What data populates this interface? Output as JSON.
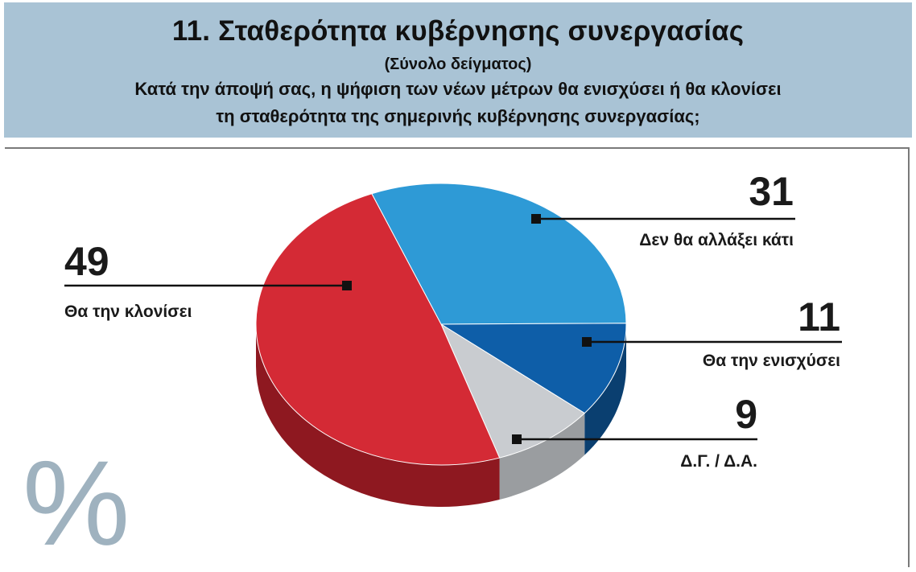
{
  "header": {
    "title": "11. Σταθερότητα κυβέρνησης συνεργασίας",
    "subtitle": "(Σύνολο δείγματος)",
    "question_line1": "Κατά την άποψή σας, η ψήφιση των νέων μέτρων θα ενισχύσει ή θα κλονίσει",
    "question_line2": "τη σταθερότητα της σημερινής κυβέρνησης συνεργασίας;"
  },
  "percent_symbol": "%",
  "colors": {
    "header_bg": "#a9c3d5",
    "red": "#d42a35",
    "light_blue": "#2e9ad6",
    "dark_blue": "#0e5ea8",
    "gray": "#c9ccd0"
  },
  "chart_data": {
    "type": "pie",
    "title": "11. Σταθερότητα κυβέρνησης συνεργασίας",
    "slices": [
      {
        "label": "Δεν θα αλλάξει κάτι",
        "value": 31,
        "color": "#2e9ad6",
        "side_color": "#1f6fa0"
      },
      {
        "label": "Θα την ενισχύσει",
        "value": 11,
        "color": "#0e5ea8",
        "side_color": "#0a3f70"
      },
      {
        "label": "Δ.Γ. / Δ.Α.",
        "value": 9,
        "color": "#c9ccd0",
        "side_color": "#9a9da0"
      },
      {
        "label": "Θα την κλονίσει",
        "value": 49,
        "color": "#d42a35",
        "side_color": "#8e1820"
      }
    ]
  }
}
